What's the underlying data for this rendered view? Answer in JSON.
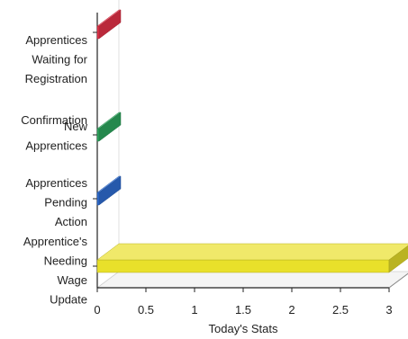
{
  "chart_data": {
    "type": "bar",
    "orientation": "horizontal",
    "style": "3d",
    "title": "",
    "xlabel": "Today's Stats",
    "ylabel": "",
    "xlim": [
      0,
      3
    ],
    "x_ticks": [
      "0",
      "0.5",
      "1",
      "1.5",
      "2",
      "2.5",
      "3"
    ],
    "grid": false,
    "legend": "none",
    "categories": [
      {
        "name": "Apprentices Waiting for Registration",
        "label_lines": [
          "Apprentices",
          "Waiting for",
          "Registration"
        ],
        "value": 0,
        "color": "#e8334a"
      },
      {
        "name": "New Apprentices Confirmation",
        "label_lines": [
          "New",
          "Apprentices"
        ],
        "label_overlap": "Confirmation",
        "value": 0,
        "color": "#2eaa60"
      },
      {
        "name": "Apprentices Pending Action",
        "label_lines": [
          "Apprentices",
          "Pending",
          "Action"
        ],
        "value": 0,
        "color": "#2f6fd6"
      },
      {
        "name": "Apprentice's Needing Wage Update",
        "label_lines": [
          "Apprentice's",
          "Needing",
          "Wage",
          "Update"
        ],
        "value": 3,
        "color": "#e9e02a"
      }
    ]
  }
}
